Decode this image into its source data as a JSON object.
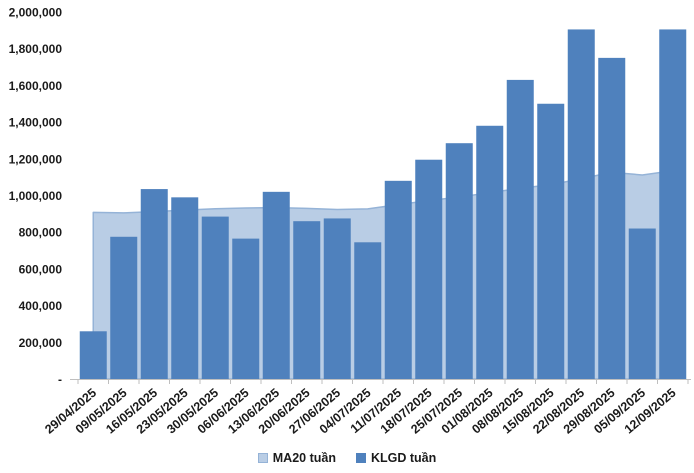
{
  "chart_data": {
    "type": "bar",
    "title": "",
    "xlabel": "",
    "ylabel": "",
    "categories": [
      "29/04/2025",
      "09/05/2025",
      "16/05/2025",
      "23/05/2025",
      "30/05/2025",
      "06/06/2025",
      "13/06/2025",
      "20/06/2025",
      "27/06/2025",
      "04/07/2025",
      "11/07/2025",
      "18/07/2025",
      "25/07/2025",
      "01/08/2025",
      "08/08/2025",
      "15/08/2025",
      "22/08/2025",
      "29/08/2025",
      "05/09/2025",
      "12/09/2025"
    ],
    "series": [
      {
        "name": "MA20 tuần",
        "render": "area",
        "fill_color": "#B9CDE5",
        "line_color": "#95B3D7",
        "values": [
          908000,
          905000,
          912000,
          920000,
          928000,
          932000,
          934000,
          930000,
          924000,
          927000,
          950000,
          972000,
          992000,
          1015000,
          1040000,
          1058000,
          1092000,
          1126000,
          1112000,
          1135000
        ]
      },
      {
        "name": "KLGD tuần",
        "render": "bar",
        "fill_color": "#4F81BD",
        "values": [
          260000,
          775000,
          1035000,
          990000,
          885000,
          765000,
          1020000,
          860000,
          875000,
          745000,
          1080000,
          1195000,
          1285000,
          1380000,
          1630000,
          1500000,
          1905000,
          1750000,
          820000,
          1905000
        ]
      }
    ],
    "ylim": [
      0,
      2000000
    ],
    "ytick_step": 200000,
    "ytick_labels": [
      "-",
      "200,000",
      "400,000",
      "600,000",
      "800,000",
      "1,000,000",
      "1,200,000",
      "1,400,000",
      "1,600,000",
      "1,800,000",
      "2,000,000"
    ],
    "grid": false,
    "legend_position": "bottom",
    "axis_color": "#BFBFBF",
    "text_color": "#1a1a1a"
  }
}
